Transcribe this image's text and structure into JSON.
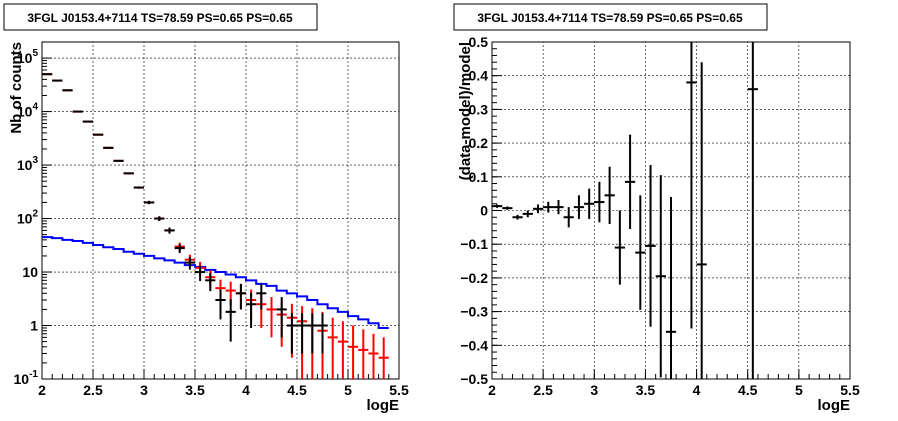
{
  "chart_data": [
    {
      "type": "histogram",
      "title": "3FGL J0153.4+7114 TS=78.59 PS=0.65 PS=0.65",
      "xlabel": "logE",
      "ylabel": "Nb of counts",
      "xlim": [
        2,
        5.5
      ],
      "ylim": [
        0.1,
        200000
      ],
      "log_y": true,
      "grid": true,
      "x_ticks": [
        "2",
        "2.5",
        "3",
        "3.5",
        "4",
        "4.5",
        "5",
        "5.5"
      ],
      "y_ticks": [
        "10^-1",
        "1",
        "10",
        "10^2",
        "10^3",
        "10^4",
        "10^5"
      ],
      "bin_edges": [
        2.0,
        2.1,
        2.2,
        2.3,
        2.4,
        2.5,
        2.6,
        2.7,
        2.8,
        2.9,
        3.0,
        3.1,
        3.2,
        3.3,
        3.4,
        3.5,
        3.6,
        3.7,
        3.8,
        3.9,
        4.0,
        4.1,
        4.2,
        4.3,
        4.4,
        4.5,
        4.6,
        4.7,
        4.8,
        4.9,
        5.0,
        5.1,
        5.2,
        5.3,
        5.4
      ],
      "series": [
        {
          "color": "#ff0000",
          "style": "markers-with-errors",
          "x": [
            2.05,
            2.15,
            2.25,
            2.35,
            2.45,
            2.55,
            2.65,
            2.75,
            2.85,
            2.95,
            3.05,
            3.15,
            3.25,
            3.35,
            3.45,
            3.55,
            3.65,
            3.75,
            3.85,
            3.95,
            4.05,
            4.15,
            4.25,
            4.35,
            4.45,
            4.55,
            4.65,
            4.75,
            4.85,
            4.95,
            5.05,
            5.15,
            5.25,
            5.35
          ],
          "y": [
            50000,
            38000,
            25000,
            10000,
            6500,
            3700,
            2100,
            1200,
            700,
            380,
            200,
            100,
            60,
            30,
            17,
            12,
            8,
            5,
            4.5,
            4,
            3,
            2.5,
            2,
            1.6,
            1.4,
            1.2,
            1.0,
            0.8,
            0.6,
            0.5,
            0.4,
            0.35,
            0.3,
            0.25
          ],
          "yerr_low": [
            300,
            200,
            160,
            100,
            80,
            60,
            45,
            35,
            26,
            19,
            14,
            10,
            7.7,
            5.5,
            4.1,
            3.5,
            2.8,
            2.2,
            2.1,
            2.0,
            1.7,
            1.6,
            1.4,
            1.2,
            1.15,
            1.1,
            0.9,
            0.7,
            0.5,
            0.4,
            0.3,
            0.25,
            0.2,
            0.15
          ],
          "yerr_high": [
            300,
            200,
            160,
            100,
            80,
            60,
            45,
            35,
            26,
            19,
            14,
            10,
            7.7,
            5.5,
            4.1,
            3.5,
            2.8,
            2.2,
            2.1,
            2.0,
            1.7,
            1.6,
            1.4,
            1.2,
            1.15,
            1.1,
            1.1,
            1.0,
            0.8,
            0.7,
            0.6,
            0.5,
            0.4,
            0.35
          ]
        },
        {
          "color": "#000000",
          "style": "markers-with-errors",
          "x": [
            2.05,
            2.15,
            2.25,
            2.35,
            2.45,
            2.55,
            2.65,
            2.75,
            2.85,
            2.95,
            3.05,
            3.15,
            3.25,
            3.35,
            3.45,
            3.55,
            3.65,
            3.75,
            3.85,
            3.95,
            4.05,
            4.15,
            4.35,
            4.45,
            4.55,
            4.65,
            4.75
          ],
          "y": [
            50000,
            38000,
            25000,
            10000,
            6500,
            3700,
            2100,
            1200,
            700,
            380,
            200,
            100,
            60,
            28,
            15,
            10,
            7,
            3,
            1.8,
            4,
            2.5,
            4,
            2,
            1,
            1,
            1,
            1
          ],
          "yerr_low": [
            300,
            200,
            160,
            100,
            80,
            60,
            45,
            35,
            26,
            19,
            14,
            10,
            7.7,
            5.3,
            3.9,
            3.2,
            2.6,
            1.7,
            1.3,
            2.0,
            1.6,
            2.0,
            1.4,
            0.7,
            0.7,
            0.7,
            0.7
          ],
          "yerr_high": [
            300,
            200,
            160,
            100,
            80,
            60,
            45,
            35,
            26,
            19,
            14,
            10,
            7.7,
            5.3,
            3.9,
            3.2,
            2.6,
            1.7,
            1.3,
            2.0,
            1.6,
            2.0,
            1.4,
            0.7,
            0.7,
            0.7,
            0.7
          ]
        },
        {
          "color": "#0000ff",
          "style": "step",
          "bin_values": [
            45,
            43,
            40,
            38,
            35,
            32,
            29,
            27,
            24,
            22,
            20,
            18,
            16.5,
            15,
            13.5,
            12.5,
            11,
            10,
            9,
            8,
            7,
            6,
            5.5,
            4.5,
            4,
            3.5,
            3,
            2.5,
            2.1,
            1.8,
            1.5,
            1.3,
            1.1,
            0.9
          ]
        }
      ]
    },
    {
      "type": "scatter",
      "title": "3FGL J0153.4+7114 TS=78.59 PS=0.65 PS=0.65",
      "xlabel": "logE",
      "ylabel": "(data-model)/model",
      "xlim": [
        2,
        5.5
      ],
      "ylim": [
        -0.5,
        0.5
      ],
      "grid": true,
      "x_ticks": [
        "2",
        "2.5",
        "3",
        "3.5",
        "4",
        "4.5",
        "5",
        "5.5"
      ],
      "y_ticks": [
        "−0.5",
        "−0.4",
        "−0.3",
        "−0.2",
        "−0.1",
        "0",
        "0.1",
        "0.2",
        "0.3",
        "0.4",
        "0.5"
      ],
      "series": [
        {
          "color": "#000000",
          "x": [
            2.05,
            2.15,
            2.25,
            2.35,
            2.45,
            2.55,
            2.65,
            2.75,
            2.85,
            2.95,
            3.05,
            3.15,
            3.25,
            3.35,
            3.45,
            3.55,
            3.65,
            3.75,
            3.95,
            4.05,
            4.55
          ],
          "y": [
            0.013,
            0.007,
            -0.02,
            -0.01,
            0.005,
            0.01,
            0.01,
            -0.02,
            0.01,
            0.02,
            0.025,
            0.045,
            -0.11,
            0.085,
            -0.125,
            -0.105,
            -0.195,
            -0.36,
            0.38,
            -0.16,
            0.36
          ],
          "yerr_low": [
            0.005,
            0.005,
            0.007,
            0.01,
            0.013,
            0.016,
            0.021,
            0.03,
            0.035,
            0.045,
            0.06,
            0.085,
            0.11,
            0.14,
            0.17,
            0.24,
            0.3,
            0.4,
            0.73,
            0.37,
            0.87
          ],
          "yerr_high": [
            0.005,
            0.005,
            0.007,
            0.01,
            0.013,
            0.016,
            0.021,
            0.03,
            0.035,
            0.045,
            0.06,
            0.085,
            0.11,
            0.14,
            0.17,
            0.24,
            0.3,
            0.4,
            0.73,
            0.6,
            0.87
          ],
          "xerr": 0.05
        }
      ]
    }
  ]
}
